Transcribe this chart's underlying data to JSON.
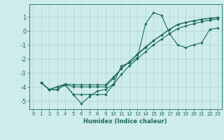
{
  "xlabel": "Humidex (Indice chaleur)",
  "ylabel": "",
  "bg_color": "#ceecea",
  "grid_color": "#b2d8d4",
  "line_color": "#1a6b5a",
  "xlim": [
    -0.5,
    23.5
  ],
  "ylim": [
    -5.6,
    1.9
  ],
  "x_ticks": [
    0,
    1,
    2,
    3,
    4,
    5,
    6,
    7,
    8,
    9,
    10,
    11,
    12,
    13,
    14,
    15,
    16,
    17,
    18,
    19,
    20,
    21,
    22,
    23
  ],
  "y_ticks": [
    -5,
    -4,
    -3,
    -2,
    -1,
    0,
    1
  ],
  "series": [
    [
      null,
      -3.7,
      -4.2,
      -4.2,
      -3.85,
      -4.55,
      -5.2,
      -4.7,
      -4.3,
      -4.2,
      -3.8,
      -2.5,
      -2.3,
      -1.9,
      0.5,
      1.3,
      1.1,
      -0.2,
      -1.0,
      -1.2,
      -1.0,
      -0.85,
      0.1,
      0.2
    ],
    [
      null,
      -3.7,
      -4.2,
      -4.2,
      -3.85,
      -4.55,
      -4.55,
      -4.55,
      -4.55,
      -4.55,
      -3.85,
      -3.1,
      -2.5,
      -2.0,
      -1.5,
      -1.0,
      -0.6,
      -0.2,
      0.15,
      0.35,
      0.5,
      0.65,
      0.75,
      0.85
    ],
    [
      null,
      -3.7,
      -4.2,
      -4.0,
      -3.85,
      -4.0,
      -4.0,
      -4.0,
      -4.0,
      -4.0,
      -3.4,
      -2.7,
      -2.2,
      -1.7,
      -1.2,
      -0.7,
      -0.3,
      0.1,
      0.45,
      0.6,
      0.72,
      0.82,
      0.88,
      0.95
    ],
    [
      null,
      -3.7,
      -4.2,
      -4.0,
      -3.8,
      -3.85,
      -3.85,
      -3.85,
      -3.85,
      -3.85,
      -3.3,
      -2.7,
      -2.2,
      -1.65,
      -1.15,
      -0.7,
      -0.3,
      0.1,
      0.45,
      0.6,
      0.72,
      0.82,
      0.88,
      0.95
    ]
  ]
}
